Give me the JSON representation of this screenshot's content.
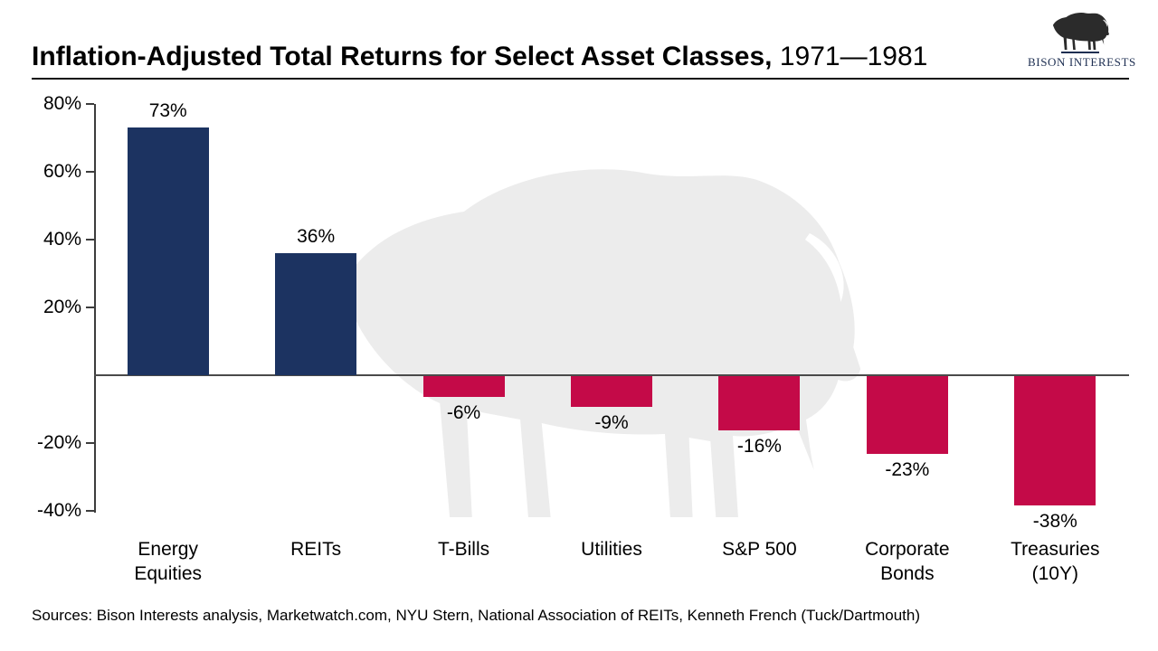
{
  "header": {
    "title_bold": "Inflation-Adjusted Total Returns for Select Asset Classes,",
    "title_period": " 1971—1981",
    "logo_text": "BISON INTERESTS"
  },
  "chart_data": {
    "type": "bar",
    "title": "Inflation-Adjusted Total Returns for Select Asset Classes, 1971—1981",
    "categories": [
      "Energy\nEquities",
      "REITs",
      "T-Bills",
      "Utilities",
      "S&P 500",
      "Corporate\nBonds",
      "Treasuries\n(10Y)"
    ],
    "values": [
      73,
      36,
      -6,
      -9,
      -16,
      -23,
      -38
    ],
    "value_labels": [
      "73%",
      "36%",
      "-6%",
      "-9%",
      "-16%",
      "-23%",
      "-38%"
    ],
    "xlabel": "",
    "ylabel": "",
    "ylim": [
      -40,
      80
    ],
    "yticks": [
      80,
      60,
      40,
      20,
      -20,
      -40
    ],
    "ytick_labels": [
      "80%",
      "60%",
      "40%",
      "20%",
      "-20%",
      "-40%"
    ],
    "positive_color": "#1c3361",
    "negative_color": "#c40a48",
    "grid": false,
    "legend": "none",
    "watermark": "bison-silhouette",
    "watermark_color": "#ececec"
  },
  "footer": {
    "sources": "Sources: Bison Interests analysis, Marketwatch.com, NYU Stern, National Association of REITs, Kenneth French (Tuck/Dartmouth)"
  }
}
